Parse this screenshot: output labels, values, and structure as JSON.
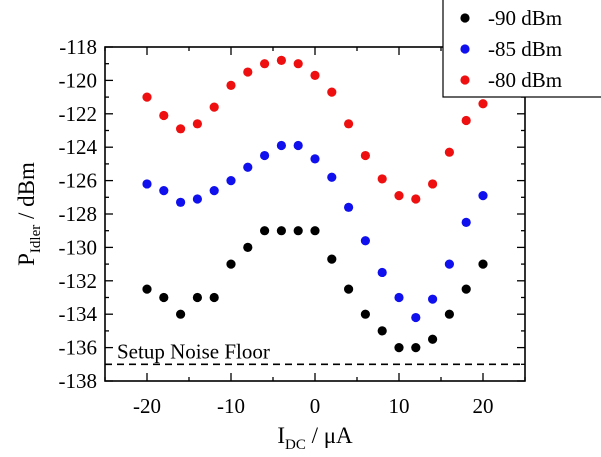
{
  "chart_data": {
    "type": "scatter",
    "xlabel": "I_DC / μA",
    "xlabel_main": "I",
    "xlabel_sub": "DC",
    "xlabel_rest": " / μA",
    "ylabel": "P_Idler / dBm",
    "ylabel_main": "P",
    "ylabel_sub": "Idler",
    "ylabel_rest": " / dBm",
    "xlim": [
      -25,
      25
    ],
    "ylim": [
      -138,
      -118
    ],
    "xticks": [
      -20,
      -10,
      0,
      10,
      20
    ],
    "xtick_labels": [
      "-20",
      "-10",
      "0",
      "10",
      "20"
    ],
    "yticks": [
      -138,
      -136,
      -134,
      -132,
      -130,
      -128,
      -126,
      -124,
      -122,
      -120,
      -118
    ],
    "ytick_labels": [
      "-138",
      "-136",
      "-134",
      "-132",
      "-130",
      "-128",
      "-126",
      "-124",
      "-122",
      "-120",
      "-118"
    ],
    "grid": false,
    "legend_position": "top-right",
    "noise_floor": {
      "label": "Setup Noise Floor",
      "y": -137
    },
    "series": [
      {
        "name": "-90 dBm",
        "color": "#000000",
        "x": [
          -20,
          -18,
          -16,
          -14,
          -12,
          -10,
          -8,
          -6,
          -4,
          -2,
          0,
          2,
          4,
          6,
          8,
          10,
          12,
          14,
          16,
          18,
          20
        ],
        "y": [
          -132.5,
          -133.0,
          -134.0,
          -133.0,
          -133.0,
          -131.0,
          -130.0,
          -129.0,
          -129.0,
          -129.0,
          -129.0,
          -130.7,
          -132.5,
          -134.0,
          -135.0,
          -136.0,
          -136.0,
          -135.5,
          -134.0,
          -132.5,
          -131.0
        ]
      },
      {
        "name": "-85 dBm",
        "color": "#1010ee",
        "x": [
          -20,
          -18,
          -16,
          -14,
          -12,
          -10,
          -8,
          -6,
          -4,
          -2,
          0,
          2,
          4,
          6,
          8,
          10,
          12,
          14,
          16,
          18,
          20
        ],
        "y": [
          -126.2,
          -126.6,
          -127.3,
          -127.1,
          -126.6,
          -126.0,
          -125.2,
          -124.5,
          -123.9,
          -123.9,
          -124.7,
          -125.8,
          -127.6,
          -129.6,
          -131.5,
          -133.0,
          -134.2,
          -133.1,
          -131.0,
          -128.5,
          -126.9
        ]
      },
      {
        "name": "-80 dBm",
        "color": "#ee1010",
        "x": [
          -20,
          -18,
          -16,
          -14,
          -12,
          -10,
          -8,
          -6,
          -4,
          -2,
          0,
          2,
          4,
          6,
          8,
          10,
          12,
          14,
          16,
          18,
          20
        ],
        "y": [
          -121.0,
          -122.1,
          -122.9,
          -122.6,
          -121.6,
          -120.3,
          -119.5,
          -119.0,
          -118.8,
          -119.0,
          -119.7,
          -120.7,
          -122.6,
          -124.5,
          -125.9,
          -126.9,
          -127.1,
          -126.2,
          -124.3,
          -122.4,
          -121.4
        ]
      }
    ]
  }
}
